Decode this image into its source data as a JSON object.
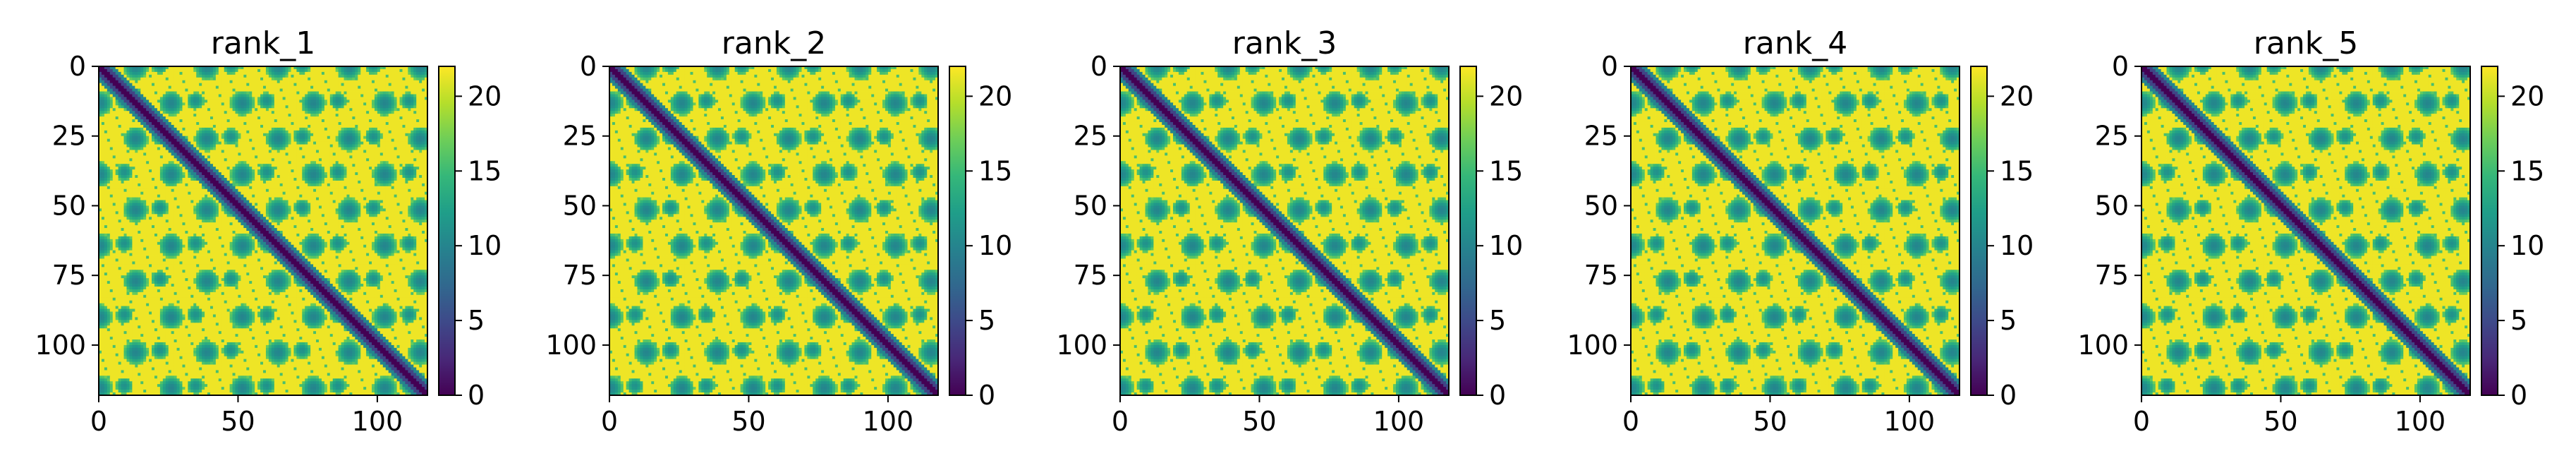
{
  "chart_data": [
    {
      "type": "heatmap",
      "title": "rank_1",
      "xlabel": "",
      "ylabel": "",
      "xlim": [
        0,
        118
      ],
      "ylim": [
        118,
        0
      ],
      "grid": false,
      "x_ticks": [
        "0",
        "50",
        "100"
      ],
      "y_ticks": [
        "0",
        "25",
        "50",
        "75",
        "100"
      ],
      "colorbar": {
        "range": [
          0,
          22
        ],
        "ticks": [
          "0",
          "5",
          "10",
          "15",
          "20"
        ],
        "colormap": "viridis"
      }
    },
    {
      "type": "heatmap",
      "title": "rank_2",
      "xlabel": "",
      "ylabel": "",
      "xlim": [
        0,
        118
      ],
      "ylim": [
        118,
        0
      ],
      "grid": false,
      "x_ticks": [
        "0",
        "50",
        "100"
      ],
      "y_ticks": [
        "0",
        "25",
        "50",
        "75",
        "100"
      ],
      "colorbar": {
        "range": [
          0,
          22
        ],
        "ticks": [
          "0",
          "5",
          "10",
          "15",
          "20"
        ],
        "colormap": "viridis"
      }
    },
    {
      "type": "heatmap",
      "title": "rank_3",
      "xlabel": "",
      "ylabel": "",
      "xlim": [
        0,
        118
      ],
      "ylim": [
        118,
        0
      ],
      "grid": false,
      "x_ticks": [
        "0",
        "50",
        "100"
      ],
      "y_ticks": [
        "0",
        "25",
        "50",
        "75",
        "100"
      ],
      "colorbar": {
        "range": [
          0,
          22
        ],
        "ticks": [
          "0",
          "5",
          "10",
          "15",
          "20"
        ],
        "colormap": "viridis"
      }
    },
    {
      "type": "heatmap",
      "title": "rank_4",
      "xlabel": "",
      "ylabel": "",
      "xlim": [
        0,
        118
      ],
      "ylim": [
        118,
        0
      ],
      "grid": false,
      "x_ticks": [
        "0",
        "50",
        "100"
      ],
      "y_ticks": [
        "0",
        "25",
        "50",
        "75",
        "100"
      ],
      "colorbar": {
        "range": [
          0,
          22
        ],
        "ticks": [
          "0",
          "5",
          "10",
          "15",
          "20"
        ],
        "colormap": "viridis"
      }
    },
    {
      "type": "heatmap",
      "title": "rank_5",
      "xlabel": "",
      "ylabel": "",
      "xlim": [
        0,
        118
      ],
      "ylim": [
        118,
        0
      ],
      "grid": false,
      "x_ticks": [
        "0",
        "50",
        "100"
      ],
      "y_ticks": [
        "0",
        "25",
        "50",
        "75",
        "100"
      ],
      "colorbar": {
        "range": [
          0,
          22
        ],
        "ticks": [
          "0",
          "5",
          "10",
          "15",
          "20"
        ],
        "colormap": "viridis"
      }
    }
  ],
  "colors": {
    "viridis_stops": [
      "#440154",
      "#482878",
      "#3e4989",
      "#31688e",
      "#26828e",
      "#1f9e89",
      "#35b779",
      "#6ece58",
      "#b5de2b",
      "#fde725"
    ],
    "background": "#ffffff",
    "axis": "#000000"
  }
}
